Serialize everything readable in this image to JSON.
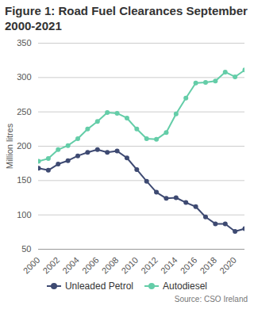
{
  "chart_data": {
    "type": "line",
    "title": "Figure 1: Road Fuel Clearances September 2000-2021",
    "y_label": "Million litres",
    "x": [
      2000,
      2001,
      2002,
      2003,
      2004,
      2005,
      2006,
      2007,
      2008,
      2009,
      2010,
      2011,
      2012,
      2013,
      2014,
      2015,
      2016,
      2017,
      2018,
      2019,
      2020,
      2021
    ],
    "series": [
      {
        "name": "Unleaded Petrol",
        "color": "#3e4a72",
        "marker": "circle",
        "values": [
          168,
          165,
          174,
          179,
          186,
          191,
          195,
          191,
          193,
          183,
          166,
          149,
          133,
          124,
          125,
          118,
          112,
          97,
          87,
          87,
          76,
          80
        ]
      },
      {
        "name": "Autodiesel",
        "color": "#64cda8",
        "marker": "circle",
        "values": [
          178,
          182,
          195,
          201,
          211,
          225,
          236,
          249,
          248,
          241,
          225,
          211,
          210,
          220,
          247,
          270,
          292,
          293,
          295,
          308,
          301,
          311
        ]
      }
    ],
    "xlim": [
      2000,
      2021
    ],
    "xticks": [
      2000,
      2002,
      2004,
      2006,
      2008,
      2010,
      2012,
      2014,
      2016,
      2018,
      2020
    ],
    "ylim": [
      50,
      350
    ],
    "yticks": [
      50,
      100,
      150,
      200,
      250,
      300,
      350
    ],
    "grid": true,
    "legend": "bottom",
    "source": "Source: CSO Ireland"
  }
}
